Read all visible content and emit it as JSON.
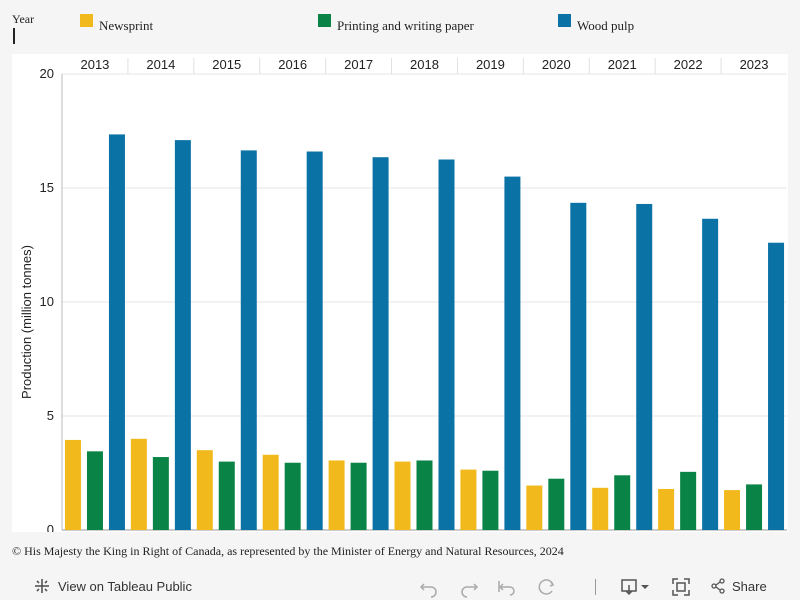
{
  "legend": {
    "year_label": "Year",
    "items": [
      {
        "label": "Newsprint",
        "color": "#f2b91d"
      },
      {
        "label": "Printing and writing paper",
        "color": "#0a8446"
      },
      {
        "label": "Wood pulp",
        "color": "#0b72a6"
      }
    ]
  },
  "chart_data": {
    "type": "bar",
    "title": "",
    "xlabel": "Year",
    "ylabel": "Production (million tonnes)",
    "ylim": [
      0,
      20
    ],
    "yticks": [
      0,
      5,
      10,
      15,
      20
    ],
    "categories": [
      "2013",
      "2014",
      "2015",
      "2016",
      "2017",
      "2018",
      "2019",
      "2020",
      "2021",
      "2022",
      "2023"
    ],
    "series": [
      {
        "name": "Newsprint",
        "values": [
          3.95,
          4.0,
          3.5,
          3.3,
          3.05,
          3.0,
          2.65,
          1.95,
          1.85,
          1.8,
          1.75
        ]
      },
      {
        "name": "Printing and writing paper",
        "values": [
          3.45,
          3.2,
          3.0,
          2.95,
          2.95,
          3.05,
          2.6,
          2.25,
          2.4,
          2.55,
          2.0
        ]
      },
      {
        "name": "Wood pulp",
        "values": [
          17.35,
          17.1,
          16.65,
          16.6,
          16.35,
          16.25,
          15.5,
          14.35,
          14.3,
          13.65,
          12.6
        ]
      }
    ],
    "legend_position": "top"
  },
  "credit": "© His Majesty the King in Right of Canada, as represented by the Minister of Energy and Natural Resources, 2024",
  "footer": {
    "view_link": "View on Tableau Public",
    "share_label": "Share",
    "icons": {
      "tableau": "tableau-logo-icon",
      "undo": "undo-icon",
      "redo": "redo-icon",
      "revert": "revert-icon",
      "refresh": "refresh-icon",
      "download": "download-icon",
      "fullscreen": "fullscreen-icon",
      "share": "share-icon"
    }
  }
}
